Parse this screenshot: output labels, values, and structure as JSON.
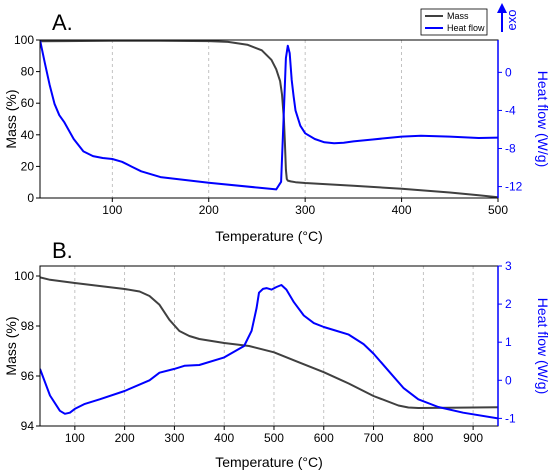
{
  "colors": {
    "mass": "#404040",
    "heat": "#0000ff",
    "grid": "#b4b4b4",
    "axis": "#000000"
  },
  "chart_data": [
    {
      "type": "line",
      "panel_label": "A.",
      "xlabel": "Temperature (°C)",
      "ylabel_left": "Mass (%)",
      "ylabel_right": "Heat flow (W/g)",
      "exo_label": "exo",
      "xlim": [
        25,
        500
      ],
      "ylim_left": [
        0,
        100
      ],
      "ylim_right": [
        -13.2,
        3.4
      ],
      "x_ticks": [
        100,
        200,
        300,
        400,
        500
      ],
      "y_ticks_left": [
        0,
        20,
        40,
        60,
        80,
        100
      ],
      "y_ticks_right": [
        -12,
        -8,
        -4,
        0
      ],
      "grid": "vertical dashed",
      "legend_position": "top-right",
      "legend": [
        "Mass",
        "Heat flow"
      ],
      "series": [
        {
          "name": "Mass",
          "axis": "left",
          "x": [
            25,
            50,
            100,
            150,
            200,
            220,
            240,
            255,
            265,
            270,
            274,
            276,
            278,
            279,
            280,
            281,
            282,
            285,
            290,
            300,
            350,
            400,
            450,
            480,
            500
          ],
          "y": [
            99.2,
            99.3,
            99.5,
            99.5,
            99.3,
            98.8,
            97,
            93.5,
            87.5,
            81.5,
            74,
            65.5,
            50,
            35,
            18,
            12,
            11,
            10.5,
            10,
            9.5,
            7.8,
            5.8,
            3.5,
            1.8,
            0.5
          ]
        },
        {
          "name": "Heat flow",
          "axis": "right",
          "x": [
            25,
            30,
            35,
            40,
            45,
            50,
            60,
            70,
            80,
            90,
            100,
            110,
            120,
            130,
            150,
            200,
            250,
            270,
            275,
            278,
            280,
            282,
            284,
            286,
            288,
            290,
            295,
            300,
            310,
            320,
            330,
            340,
            350,
            370,
            400,
            420,
            450,
            480,
            500
          ],
          "y": [
            3.4,
            1.0,
            -1.3,
            -3.3,
            -4.5,
            -5.2,
            -7.0,
            -8.3,
            -8.8,
            -9.0,
            -9.1,
            -9.4,
            -9.9,
            -10.4,
            -11.0,
            -11.6,
            -12.1,
            -12.3,
            -11.5,
            -4.0,
            1.5,
            2.8,
            2.0,
            -0.8,
            -2.5,
            -4.0,
            -5.6,
            -6.4,
            -7.0,
            -7.35,
            -7.45,
            -7.4,
            -7.25,
            -7.05,
            -6.75,
            -6.65,
            -6.75,
            -6.9,
            -6.85
          ]
        }
      ]
    },
    {
      "type": "line",
      "panel_label": "B.",
      "xlabel": "Temperature (°C)",
      "ylabel_left": "Mass (%)",
      "ylabel_right": "Heat flow (W/g)",
      "xlim": [
        30,
        950
      ],
      "ylim_left": [
        94,
        100.4
      ],
      "ylim_right": [
        -1.2,
        3.0
      ],
      "x_ticks": [
        100,
        200,
        300,
        400,
        500,
        600,
        700,
        800,
        900
      ],
      "y_ticks_left": [
        94,
        96,
        98,
        100
      ],
      "y_ticks_right": [
        -1,
        0,
        1,
        2,
        3
      ],
      "grid": "vertical dashed",
      "series": [
        {
          "name": "Mass",
          "axis": "left",
          "x": [
            30,
            50,
            100,
            150,
            200,
            230,
            250,
            270,
            290,
            310,
            330,
            350,
            400,
            450,
            500,
            550,
            600,
            650,
            700,
            750,
            770,
            790,
            850,
            900,
            950
          ],
          "y": [
            99.95,
            99.85,
            99.72,
            99.6,
            99.48,
            99.38,
            99.2,
            98.85,
            98.25,
            97.8,
            97.6,
            97.48,
            97.32,
            97.2,
            96.95,
            96.55,
            96.15,
            95.7,
            95.2,
            94.82,
            94.74,
            94.72,
            94.73,
            94.74,
            94.75
          ]
        },
        {
          "name": "Heat flow",
          "axis": "right",
          "x": [
            30,
            50,
            70,
            80,
            90,
            100,
            120,
            150,
            200,
            250,
            270,
            300,
            320,
            350,
            400,
            440,
            455,
            465,
            470,
            478,
            485,
            495,
            505,
            515,
            525,
            540,
            560,
            580,
            600,
            620,
            650,
            680,
            700,
            730,
            760,
            790,
            830,
            880,
            950
          ],
          "y": [
            0.3,
            -0.4,
            -0.8,
            -0.88,
            -0.85,
            -0.75,
            -0.62,
            -0.5,
            -0.28,
            0.0,
            0.2,
            0.3,
            0.38,
            0.4,
            0.6,
            0.9,
            1.3,
            1.9,
            2.3,
            2.4,
            2.42,
            2.38,
            2.45,
            2.5,
            2.38,
            2.05,
            1.7,
            1.5,
            1.4,
            1.32,
            1.2,
            0.95,
            0.7,
            0.25,
            -0.2,
            -0.5,
            -0.7,
            -0.85,
            -1.0
          ]
        }
      ]
    }
  ]
}
